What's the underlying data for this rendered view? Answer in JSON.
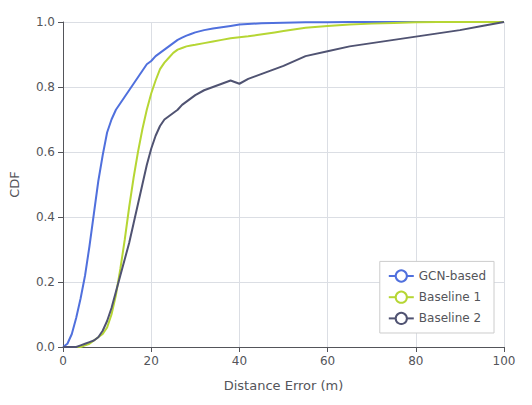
{
  "chart_data": {
    "type": "line",
    "xlabel": "Distance Error (m)",
    "ylabel": "CDF",
    "xlim": [
      0,
      100
    ],
    "ylim": [
      0,
      1.0
    ],
    "xticks": [
      0,
      20,
      40,
      60,
      80,
      100
    ],
    "yticks": [
      {
        "value": 0,
        "label": "0.0"
      },
      0.2,
      0.4,
      0.6,
      0.8,
      {
        "value": 1,
        "label": "1.0"
      }
    ],
    "grid": true,
    "legend": "lower right",
    "series": [
      {
        "name": "GCN-based",
        "x": [
          0,
          1,
          2,
          3,
          4,
          5,
          6,
          7,
          8,
          9,
          10,
          11,
          12,
          13,
          14,
          15,
          16,
          17,
          18,
          19,
          20,
          21,
          22,
          23,
          24,
          25,
          26,
          27,
          28,
          29,
          30,
          32,
          34,
          36,
          38,
          40,
          45,
          50,
          55,
          60,
          65,
          70,
          75,
          80,
          85,
          90,
          95,
          100
        ],
        "values": [
          0.0,
          0.01,
          0.04,
          0.09,
          0.15,
          0.22,
          0.31,
          0.41,
          0.51,
          0.59,
          0.66,
          0.7,
          0.73,
          0.75,
          0.77,
          0.79,
          0.81,
          0.83,
          0.85,
          0.87,
          0.88,
          0.895,
          0.905,
          0.915,
          0.925,
          0.935,
          0.945,
          0.952,
          0.958,
          0.963,
          0.968,
          0.975,
          0.98,
          0.984,
          0.988,
          0.992,
          0.996,
          0.998,
          0.999,
          0.9995,
          1.0,
          1.0,
          1.0,
          1.0,
          1.0,
          1.0,
          1.0,
          1.0
        ]
      },
      {
        "name": "Baseline 1",
        "x": [
          0,
          1,
          2,
          3,
          4,
          5,
          6,
          7,
          8,
          9,
          10,
          11,
          12,
          13,
          14,
          15,
          16,
          17,
          18,
          19,
          20,
          21,
          22,
          23,
          24,
          25,
          26,
          27,
          28,
          29,
          30,
          32,
          34,
          36,
          38,
          40,
          42,
          44,
          46,
          48,
          50,
          55,
          60,
          65,
          70,
          75,
          80,
          85,
          90,
          95,
          100
        ],
        "values": [
          0.0,
          0.0,
          0.0,
          0.0,
          0.0,
          0.005,
          0.01,
          0.02,
          0.03,
          0.04,
          0.06,
          0.1,
          0.16,
          0.24,
          0.33,
          0.43,
          0.52,
          0.6,
          0.67,
          0.73,
          0.78,
          0.82,
          0.855,
          0.875,
          0.89,
          0.905,
          0.915,
          0.92,
          0.925,
          0.928,
          0.93,
          0.935,
          0.94,
          0.945,
          0.95,
          0.953,
          0.956,
          0.96,
          0.964,
          0.968,
          0.972,
          0.982,
          0.988,
          0.992,
          0.995,
          0.997,
          0.999,
          1.0,
          1.0,
          1.0,
          1.0
        ]
      },
      {
        "name": "Baseline 2",
        "x": [
          0,
          1,
          2,
          3,
          4,
          5,
          6,
          7,
          8,
          9,
          10,
          11,
          12,
          13,
          14,
          15,
          16,
          17,
          18,
          19,
          20,
          21,
          22,
          23,
          24,
          25,
          26,
          27,
          28,
          29,
          30,
          32,
          34,
          36,
          38,
          40,
          42,
          44,
          46,
          48,
          50,
          55,
          60,
          65,
          70,
          75,
          80,
          85,
          90,
          95,
          100
        ],
        "values": [
          0.0,
          0.0,
          0.0,
          0.0,
          0.005,
          0.01,
          0.015,
          0.02,
          0.03,
          0.05,
          0.08,
          0.12,
          0.17,
          0.22,
          0.27,
          0.32,
          0.38,
          0.44,
          0.5,
          0.56,
          0.61,
          0.65,
          0.68,
          0.7,
          0.71,
          0.72,
          0.73,
          0.745,
          0.755,
          0.765,
          0.775,
          0.79,
          0.8,
          0.81,
          0.82,
          0.81,
          0.825,
          0.835,
          0.845,
          0.855,
          0.865,
          0.895,
          0.91,
          0.925,
          0.935,
          0.945,
          0.955,
          0.965,
          0.975,
          0.988,
          1.0
        ]
      }
    ]
  }
}
